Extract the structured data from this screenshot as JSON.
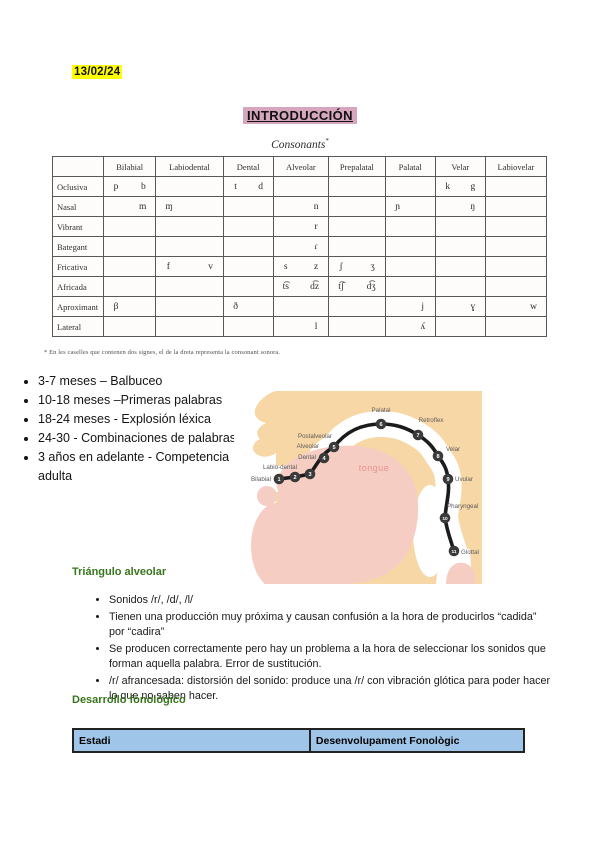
{
  "page": {
    "date": "13/02/24",
    "title": "INTRODUCCIÓN"
  },
  "consonants": {
    "caption": "Consonants",
    "caption_note": "*",
    "columns": [
      "Bilabial",
      "Labiodental",
      "Dental",
      "Alveolar",
      "Prepalatal",
      "Palatal",
      "Velar",
      "Labiovelar"
    ],
    "rows": [
      {
        "label": "Oclusiva",
        "cells": [
          [
            "p",
            "b"
          ],
          null,
          [
            "t",
            "d"
          ],
          null,
          null,
          null,
          [
            "k",
            "g"
          ],
          null
        ]
      },
      {
        "label": "Nasal",
        "cells": [
          [
            "",
            "m"
          ],
          [
            "ɱ",
            ""
          ],
          null,
          [
            "",
            "n"
          ],
          null,
          [
            "ɲ",
            ""
          ],
          [
            "",
            "ŋ"
          ],
          null
        ]
      },
      {
        "label": "Vibrant",
        "cells": [
          null,
          null,
          null,
          [
            "",
            "r"
          ],
          null,
          null,
          null,
          null
        ]
      },
      {
        "label": "Bategant",
        "cells": [
          null,
          null,
          null,
          [
            "",
            "ɾ"
          ],
          null,
          null,
          null,
          null
        ]
      },
      {
        "label": "Fricativa",
        "cells": [
          null,
          [
            "f",
            "v"
          ],
          null,
          [
            "s",
            "z"
          ],
          [
            "ʃ",
            "ʒ"
          ],
          null,
          null,
          null
        ]
      },
      {
        "label": "Africada",
        "cells": [
          null,
          null,
          null,
          [
            "t͡s",
            "d͡z"
          ],
          [
            "t͡ʃ",
            "d͡ʒ"
          ],
          null,
          null,
          null
        ]
      },
      {
        "label": "Aproximant",
        "cells": [
          [
            "β",
            ""
          ],
          null,
          [
            "ð",
            ""
          ],
          null,
          null,
          [
            "",
            "j"
          ],
          [
            "",
            "ɣ"
          ],
          [
            "",
            "w"
          ]
        ]
      },
      {
        "label": "Lateral",
        "cells": [
          null,
          null,
          null,
          [
            "",
            "l"
          ],
          null,
          [
            "",
            "ʎ"
          ],
          null,
          null
        ]
      }
    ],
    "footnote": "* En les caselles que contenen dos signes, el de la dreta representa la consonant sonora."
  },
  "milestones": [
    "3-7 meses – Balbuceo",
    "10-18 meses –Primeras palabras",
    "18-24 meses - Explosión léxica",
    "24-30 - Combinaciones de palabras",
    "3 años en adelante - Competencia adulta"
  ],
  "diagram": {
    "tongue_label": "tongue",
    "points": [
      {
        "n": "1",
        "label": "Bilabial"
      },
      {
        "n": "2",
        "label": "Labio-dental"
      },
      {
        "n": "3",
        "label": "Dental"
      },
      {
        "n": "4",
        "label": "Alveolar"
      },
      {
        "n": "5",
        "label": "Postalveolar"
      },
      {
        "n": "6",
        "label": "Palatal"
      },
      {
        "n": "7",
        "label": "Retroflex"
      },
      {
        "n": "8",
        "label": "Velar"
      },
      {
        "n": "9",
        "label": "Uvular"
      },
      {
        "n": "10",
        "label": "Pharyngeal"
      },
      {
        "n": "11",
        "label": "Glottal"
      }
    ]
  },
  "alveolar_triangle": {
    "heading": "Triángulo alveolar",
    "bullets": [
      "Sonidos /r/, /d/, /l/",
      "Tienen una producción muy próxima y causan confusión a la hora de producirlos “cadida” por “cadira”",
      "Se producen correctamente pero hay un problema a la hora de seleccionar los sonidos que forman aquella palabra. Error de sustitución.",
      "/r/ afrancesada: distorsión del sonido: produce una /r/ con vibración glótica para poder hacer lo que no saben hacer."
    ]
  },
  "phonological_development": {
    "heading": "Desarrollo fonológico",
    "table_headers": [
      "Estadi",
      "Desenvolupament Fonològic"
    ]
  },
  "colors": {
    "date_highlight": "#ffff00",
    "title_highlight": "#d5a6bd",
    "heading_green": "#38761d",
    "table_header_blue": "#9fc5e8",
    "diagram_skin": "#f8d7a6",
    "diagram_tongue": "#f5cdc3",
    "diagram_point": "#3a3a3a"
  }
}
